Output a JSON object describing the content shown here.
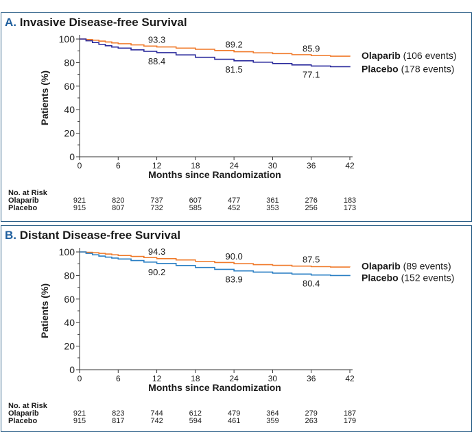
{
  "figures": [
    {
      "letter": "A.",
      "title": "Invasive Disease-free Survival",
      "risk_header": "No. at Risk",
      "risk_rows": [
        {
          "label": "Olaparib",
          "values": [
            "921",
            "820",
            "737",
            "607",
            "477",
            "361",
            "276",
            "183"
          ]
        },
        {
          "label": "Placebo",
          "values": [
            "915",
            "807",
            "732",
            "585",
            "452",
            "353",
            "256",
            "173"
          ]
        }
      ]
    },
    {
      "letter": "B.",
      "title": "Distant Disease-free Survival",
      "risk_header": "No. at Risk",
      "risk_rows": [
        {
          "label": "Olaparib",
          "values": [
            "921",
            "823",
            "744",
            "612",
            "479",
            "364",
            "279",
            "187"
          ]
        },
        {
          "label": "Placebo",
          "values": [
            "915",
            "817",
            "742",
            "594",
            "461",
            "359",
            "263",
            "179"
          ]
        }
      ]
    }
  ],
  "chart_data": [
    {
      "type": "line",
      "title": "Invasive Disease-free Survival",
      "xlabel": "Months since Randomization",
      "ylabel": "Patients (%)",
      "xlim": [
        0,
        42
      ],
      "ylim": [
        0,
        100
      ],
      "xticks": [
        0,
        6,
        12,
        18,
        24,
        30,
        36,
        42
      ],
      "yticks": [
        0,
        20,
        40,
        60,
        80,
        100
      ],
      "legend_position": "right",
      "series": [
        {
          "name": "Olaparib",
          "legend_note": "(106 events)",
          "color": "#f07a2a",
          "x": [
            0,
            1,
            2,
            3,
            4,
            5,
            6,
            8,
            10,
            12,
            15,
            18,
            21,
            24,
            27,
            30,
            33,
            36,
            39,
            42
          ],
          "y": [
            100,
            99.5,
            99,
            98.2,
            97.5,
            96.7,
            96,
            95,
            94,
            93.3,
            92.3,
            91.3,
            90.2,
            89.2,
            88.3,
            87.6,
            86.7,
            85.9,
            85.4,
            85
          ],
          "point_labels": [
            {
              "x": 12,
              "y": 93.3,
              "text": "93.3"
            },
            {
              "x": 24,
              "y": 89.2,
              "text": "89.2"
            },
            {
              "x": 36,
              "y": 85.9,
              "text": "85.9"
            }
          ]
        },
        {
          "name": "Placebo",
          "legend_note": "(178 events)",
          "color": "#2a2a9c",
          "x": [
            0,
            1,
            2,
            3,
            4,
            5,
            6,
            8,
            10,
            12,
            15,
            18,
            21,
            24,
            27,
            30,
            33,
            36,
            39,
            42
          ],
          "y": [
            100,
            98.5,
            97,
            95.5,
            94.3,
            93.2,
            92.3,
            90.8,
            89.6,
            88.4,
            86.5,
            84.5,
            82.8,
            81.5,
            80.3,
            79.2,
            78,
            77.1,
            76.5,
            76
          ],
          "point_labels": [
            {
              "x": 12,
              "y": 88.4,
              "text": "88.4"
            },
            {
              "x": 24,
              "y": 81.5,
              "text": "81.5"
            },
            {
              "x": 36,
              "y": 77.1,
              "text": "77.1"
            }
          ]
        }
      ]
    },
    {
      "type": "line",
      "title": "Distant Disease-free Survival",
      "xlabel": "Months since Randomization",
      "ylabel": "Patients (%)",
      "xlim": [
        0,
        42
      ],
      "ylim": [
        0,
        100
      ],
      "xticks": [
        0,
        6,
        12,
        18,
        24,
        30,
        36,
        42
      ],
      "yticks": [
        0,
        20,
        40,
        60,
        80,
        100
      ],
      "legend_position": "right",
      "series": [
        {
          "name": "Olaparib",
          "legend_note": "(89 events)",
          "color": "#f07a2a",
          "x": [
            0,
            1,
            2,
            3,
            4,
            5,
            6,
            8,
            10,
            12,
            15,
            18,
            21,
            24,
            27,
            30,
            33,
            36,
            39,
            42
          ],
          "y": [
            100,
            99.7,
            99.3,
            98.8,
            98.2,
            97.6,
            97,
            96.2,
            95.2,
            94.3,
            93.2,
            92,
            91,
            90,
            89.2,
            88.6,
            88,
            87.5,
            87.2,
            87
          ],
          "point_labels": [
            {
              "x": 12,
              "y": 94.3,
              "text": "94.3"
            },
            {
              "x": 24,
              "y": 90.0,
              "text": "90.0"
            },
            {
              "x": 36,
              "y": 87.5,
              "text": "87.5"
            }
          ]
        },
        {
          "name": "Placebo",
          "legend_note": "(152 events)",
          "color": "#2a7fc4",
          "x": [
            0,
            1,
            2,
            3,
            4,
            5,
            6,
            8,
            10,
            12,
            15,
            18,
            21,
            24,
            27,
            30,
            33,
            36,
            39,
            42
          ],
          "y": [
            100,
            98.8,
            97.6,
            96.5,
            95.6,
            94.8,
            94,
            92.7,
            91.4,
            90.2,
            88.5,
            86.8,
            85.2,
            83.9,
            82.9,
            82,
            81.2,
            80.4,
            80,
            79.5
          ],
          "point_labels": [
            {
              "x": 12,
              "y": 90.2,
              "text": "90.2"
            },
            {
              "x": 24,
              "y": 83.9,
              "text": "83.9"
            },
            {
              "x": 36,
              "y": 80.4,
              "text": "80.4"
            }
          ]
        }
      ]
    }
  ]
}
